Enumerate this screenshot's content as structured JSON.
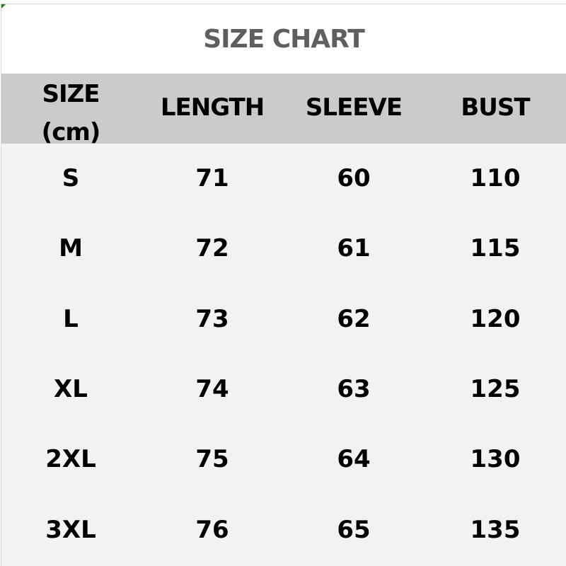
{
  "title": "SIZE CHART",
  "headers": [
    "SIZE",
    "(cm)",
    "LENGTH",
    "SLEEVE",
    "BUST"
  ],
  "rows": [
    [
      "S",
      "71",
      "60",
      "110"
    ],
    [
      "M",
      "72",
      "61",
      "115"
    ],
    [
      "L",
      "73",
      "62",
      "120"
    ],
    [
      "XL",
      "74",
      "63",
      "125"
    ],
    [
      "2XL",
      "75",
      "64",
      "130"
    ],
    [
      "3XL",
      "76",
      "65",
      "135"
    ]
  ],
  "colors": {
    "header_bg": "#cbcbcb",
    "body_bg": "#f2f2f2",
    "title_text": "#5f5f5f"
  }
}
